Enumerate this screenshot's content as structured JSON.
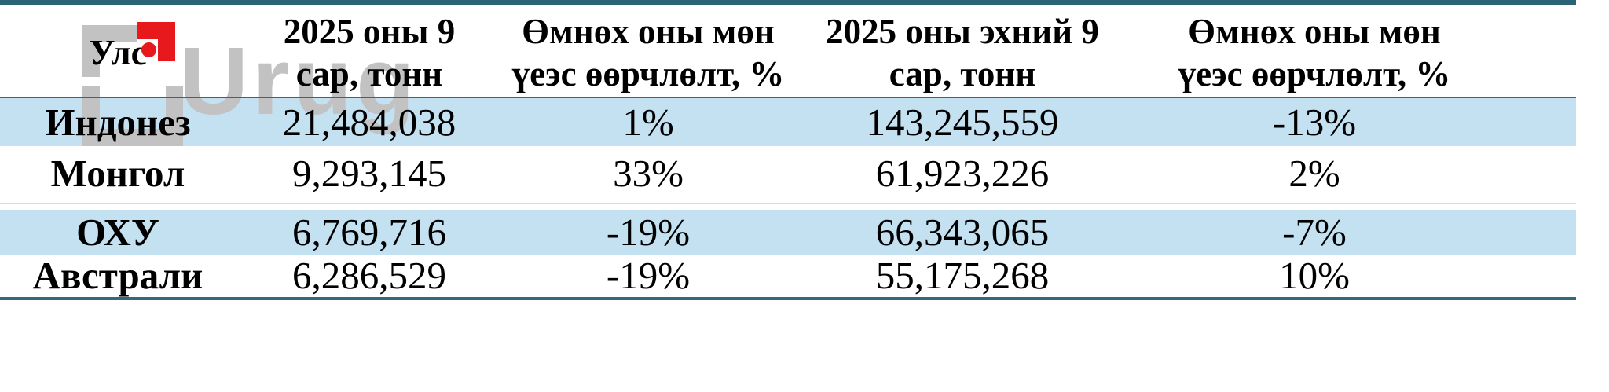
{
  "watermark": {
    "brand_text": "Urug"
  },
  "table": {
    "headers": [
      {
        "line1": "Улс",
        "line2": ""
      },
      {
        "line1": "2025 оны 9",
        "line2": "сар, тонн"
      },
      {
        "line1": "Өмнөх оны мөн",
        "line2": "үеэс өөрчлөлт, %"
      },
      {
        "line1": "2025 оны эхний 9",
        "line2": "сар, тонн"
      },
      {
        "line1": "Өмнөх оны мөн",
        "line2": "үеэс өөрчлөлт, %"
      }
    ],
    "rows": [
      {
        "country": "Индонез",
        "sep2025_tonnes": "21,484,038",
        "mom_change_pct": "1%",
        "first9mo_tonnes": "143,245,559",
        "yoy_change_pct": "-13%"
      },
      {
        "country": "Монгол",
        "sep2025_tonnes": "9,293,145",
        "mom_change_pct": "33%",
        "first9mo_tonnes": "61,923,226",
        "yoy_change_pct": "2%"
      },
      {
        "country": "ОХУ",
        "sep2025_tonnes": "6,769,716",
        "mom_change_pct": "-19%",
        "first9mo_tonnes": "66,343,065",
        "yoy_change_pct": "-7%"
      },
      {
        "country": "Австрали",
        "sep2025_tonnes": "6,286,529",
        "mom_change_pct": "-19%",
        "first9mo_tonnes": "55,175,268",
        "yoy_change_pct": "10%"
      }
    ]
  },
  "colors": {
    "accent_teal": "#2a6375",
    "line_teal": "#2f6b7c",
    "row_highlight": "#c3e1f1",
    "hairline_gray": "#d9d9d9",
    "watermark_gray": "#c2c2c2",
    "logo_red": "#e8191c"
  }
}
